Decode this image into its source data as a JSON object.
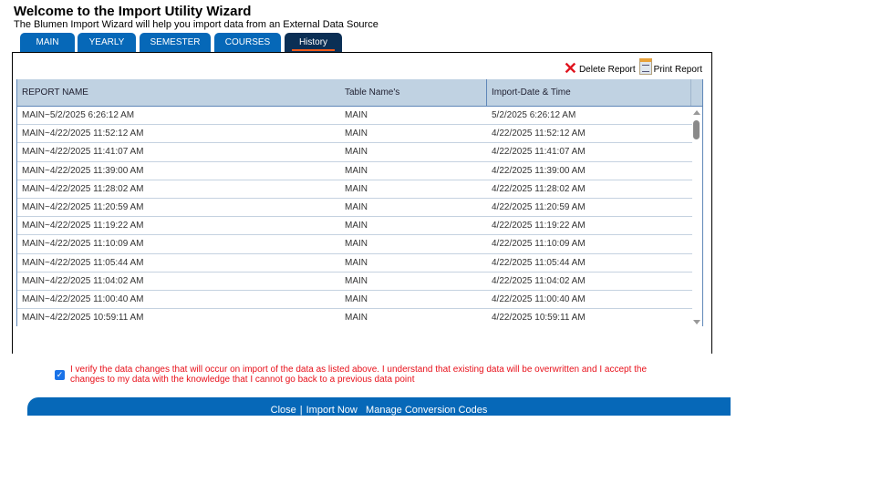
{
  "header": {
    "title": "Welcome to the Import Utility Wizard",
    "subtitle": "The Blumen Import Wizard will help you import data from an External Data Source"
  },
  "tabs": [
    {
      "label": "MAIN"
    },
    {
      "label": "YEARLY"
    },
    {
      "label": "SEMESTER"
    },
    {
      "label": "COURSES"
    },
    {
      "label": "History",
      "active": true
    }
  ],
  "actions": {
    "delete": "Delete Report",
    "print": "Print Report"
  },
  "table": {
    "columns": [
      "REPORT NAME",
      "Table Name's",
      "Import-Date & Time"
    ],
    "rows": [
      [
        "MAIN~5/2/2025 6:26:12 AM",
        "MAIN",
        "5/2/2025 6:26:12 AM"
      ],
      [
        "MAIN~4/22/2025 11:52:12 AM",
        "MAIN",
        "4/22/2025 11:52:12 AM"
      ],
      [
        "MAIN~4/22/2025 11:41:07 AM",
        "MAIN",
        "4/22/2025 11:41:07 AM"
      ],
      [
        "MAIN~4/22/2025 11:39:00 AM",
        "MAIN",
        "4/22/2025 11:39:00 AM"
      ],
      [
        "MAIN~4/22/2025 11:28:02 AM",
        "MAIN",
        "4/22/2025 11:28:02 AM"
      ],
      [
        "MAIN~4/22/2025 11:20:59 AM",
        "MAIN",
        "4/22/2025 11:20:59 AM"
      ],
      [
        "MAIN~4/22/2025 11:19:22 AM",
        "MAIN",
        "4/22/2025 11:19:22 AM"
      ],
      [
        "MAIN~4/22/2025 11:10:09 AM",
        "MAIN",
        "4/22/2025 11:10:09 AM"
      ],
      [
        "MAIN~4/22/2025 11:05:44 AM",
        "MAIN",
        "4/22/2025 11:05:44 AM"
      ],
      [
        "MAIN~4/22/2025 11:04:02 AM",
        "MAIN",
        "4/22/2025 11:04:02 AM"
      ],
      [
        "MAIN~4/22/2025 11:00:40 AM",
        "MAIN",
        "4/22/2025 11:00:40 AM"
      ],
      [
        "MAIN~4/22/2025 10:59:11 AM",
        "MAIN",
        "4/22/2025 10:59:11 AM"
      ]
    ]
  },
  "verify": {
    "checked": true,
    "text": "I verify the data changes that will occur on import of the data as listed above. I understand that existing data will be overwritten and I accept the changes to my data with the knowledge that I cannot go back to a previous data point"
  },
  "footer": {
    "close": "Close",
    "separator": "|",
    "import": "Import Now",
    "manage": "Manage Conversion Codes"
  },
  "colors": {
    "tab": "#0668b8",
    "active_tab": "#0b2f55",
    "header_bg": "#c0d2e2",
    "warning": "#e8101a"
  }
}
